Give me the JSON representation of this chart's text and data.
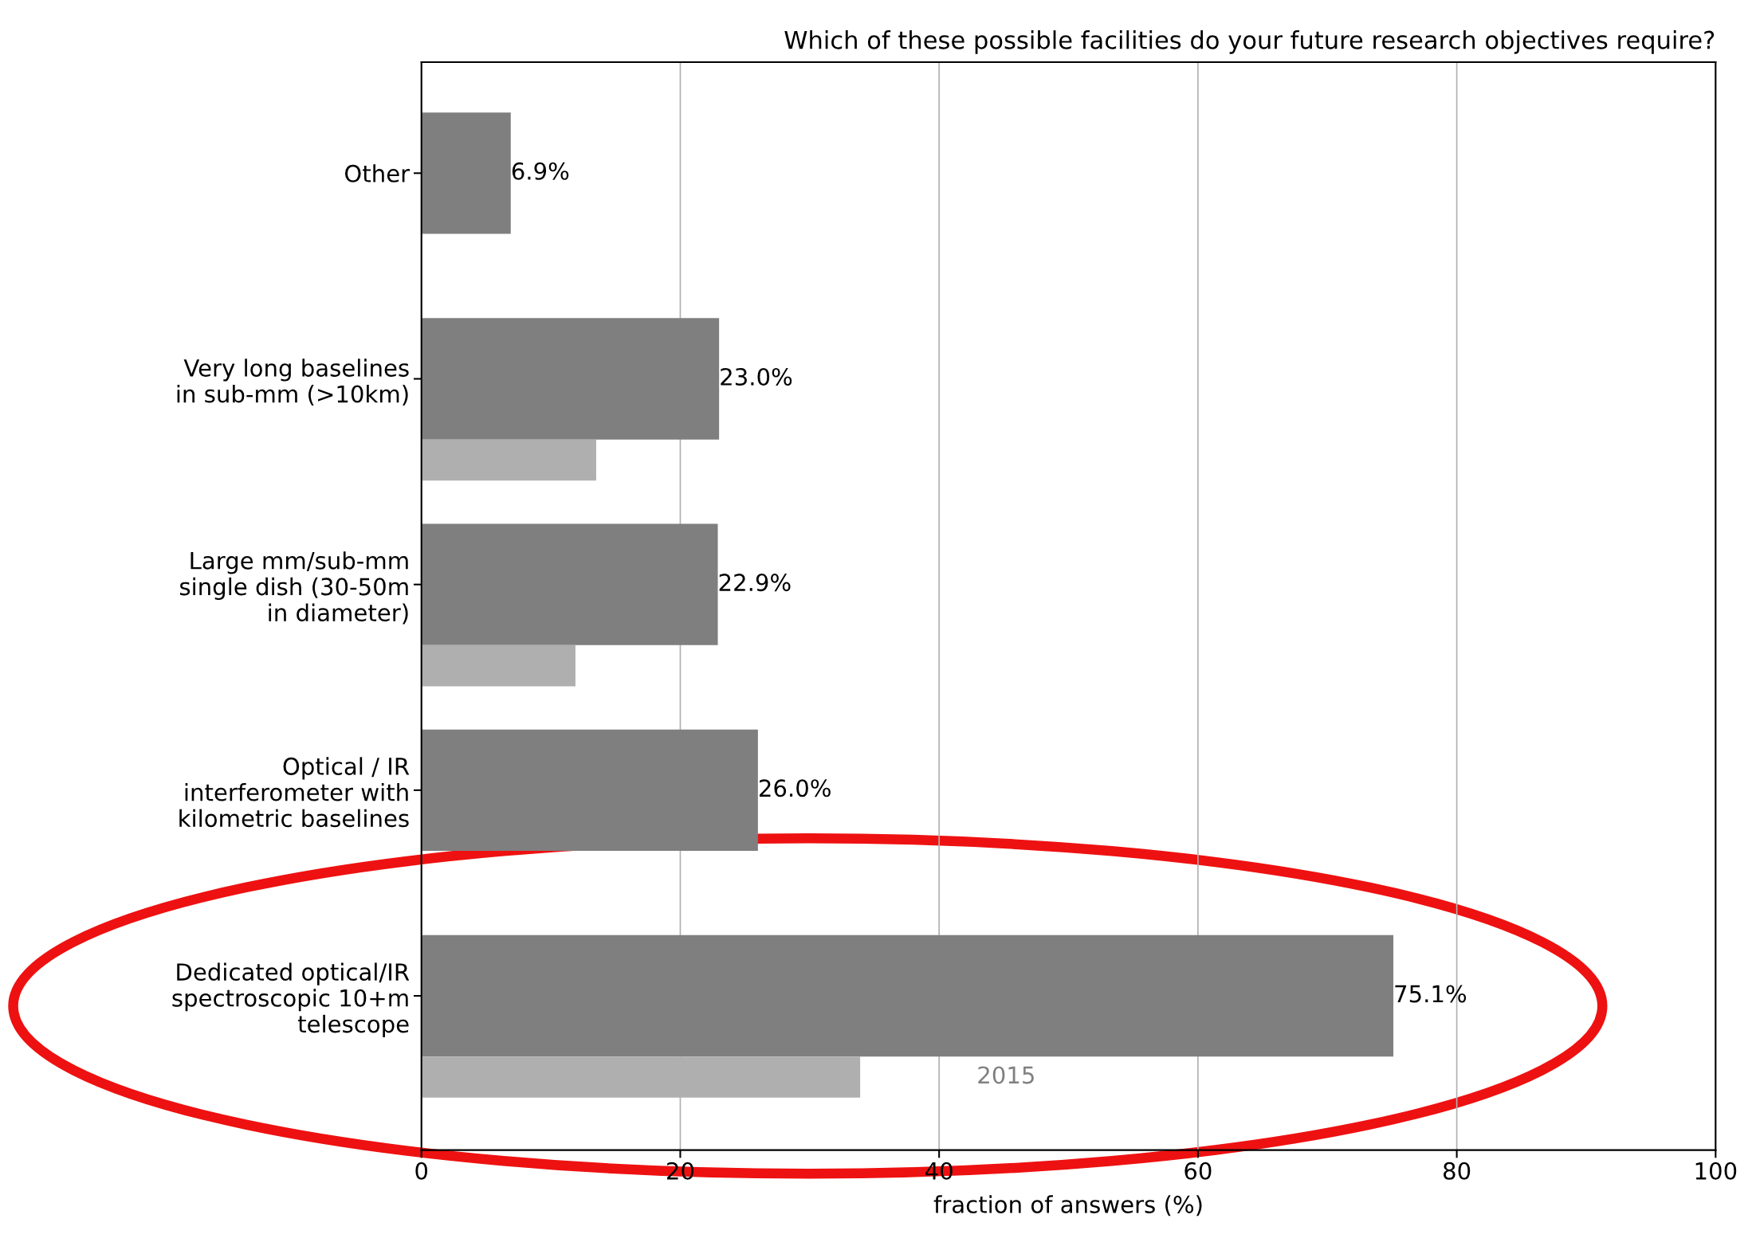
{
  "chart_data": {
    "type": "bar",
    "orientation": "horizontal",
    "title": "Which of these possible facilities do your future research objectives require?",
    "xlabel": "fraction of answers (%)",
    "categories": [
      "Other",
      "Very long baselines\nin sub-mm (>10km)",
      "Large mm/sub-mm\nsingle dish (30-50m\nin diameter)",
      "Optical / IR\ninterferometer with\nkilometric baselines",
      "Dedicated optical/IR\nspectroscopic 10+m\ntelescope"
    ],
    "series": [
      {
        "color": "#7f7f7f",
        "values": [
          6.9,
          23.0,
          22.9,
          26.0,
          75.1
        ],
        "value_labels": [
          "6.9%",
          "23.0%",
          "22.9%",
          "26.0%",
          "75.1%"
        ]
      },
      {
        "name": "2015",
        "color": "#afafaf",
        "values": [
          null,
          13.5,
          11.9,
          null,
          33.9
        ]
      }
    ],
    "xlim": [
      0,
      100
    ],
    "xticks": [
      0,
      20,
      40,
      60,
      80,
      100
    ],
    "grid": "x"
  }
}
